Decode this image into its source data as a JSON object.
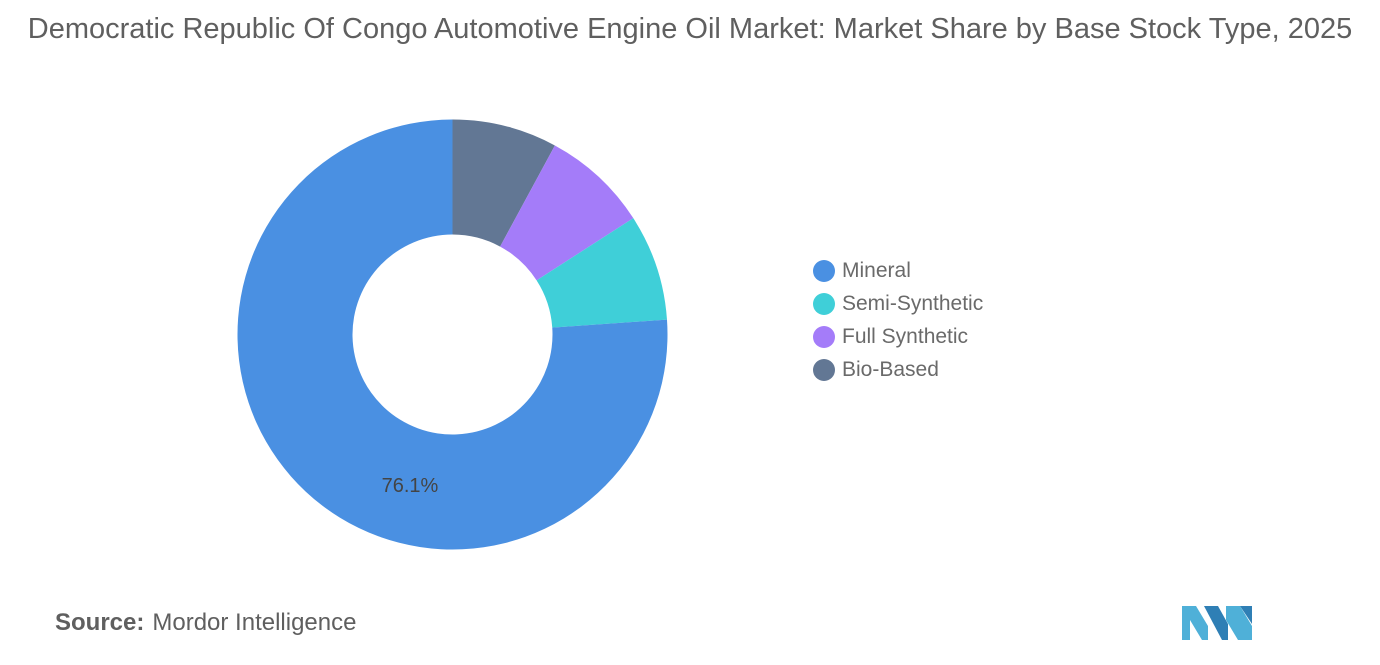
{
  "title": "Democratic Republic Of Congo Automotive Engine Oil Market: Market Share by Base Stock Type, 2025",
  "source": {
    "label": "Source:",
    "value": "Mordor Intelligence"
  },
  "chart_data": {
    "type": "pie",
    "style": "donut",
    "title": "Democratic Republic Of Congo Automotive Engine Oil Market: Market Share by Base Stock Type, 2025",
    "legend_position": "right",
    "series": [
      {
        "name": "Mineral",
        "value": 76.1,
        "color": "#4a90e2",
        "label": "76.1%"
      },
      {
        "name": "Semi-Synthetic",
        "value": 8.0,
        "color": "#3fcfd8"
      },
      {
        "name": "Full Synthetic",
        "value": 8.0,
        "color": "#a47cf9"
      },
      {
        "name": "Bio-Based",
        "value": 7.9,
        "color": "#627794"
      }
    ],
    "slice_order_clockwise_from_top": [
      "Bio-Based",
      "Full Synthetic",
      "Semi-Synthetic",
      "Mineral"
    ]
  },
  "logo": {
    "colors": [
      "#4fb0d8",
      "#2f7fb5"
    ]
  }
}
